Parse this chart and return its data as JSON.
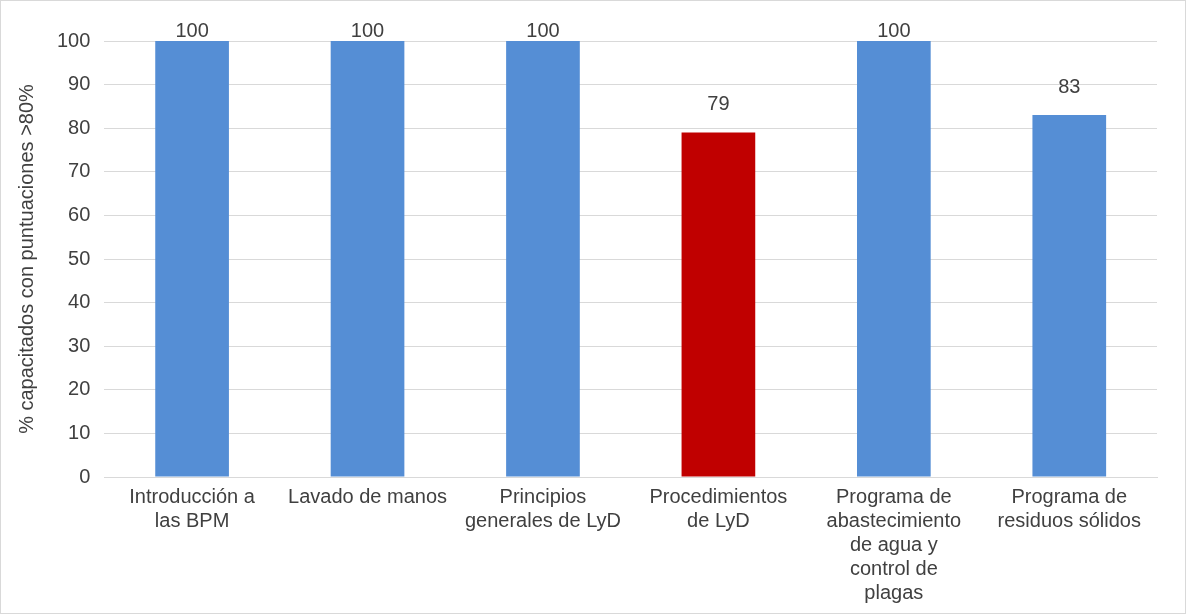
{
  "chart_data": {
    "type": "bar",
    "ylabel": "% capacitados con puntuaciones >80%",
    "categories": [
      "Introducción a las BPM",
      "Lavado de manos",
      "Principios generales de LyD",
      "Procedimientos de LyD",
      "Programa de abastecimiento de agua y control de plagas",
      "Programa de residuos sólidos"
    ],
    "values": [
      100,
      100,
      100,
      79,
      100,
      83
    ],
    "colors": [
      "#558ed5",
      "#558ed5",
      "#558ed5",
      "#c00000",
      "#558ed5",
      "#558ed5"
    ],
    "ylim": [
      0,
      100
    ],
    "yticks": [
      0,
      10,
      20,
      30,
      40,
      50,
      60,
      70,
      80,
      90,
      100
    ],
    "grid": "y",
    "data_labels": true,
    "legend": false
  }
}
